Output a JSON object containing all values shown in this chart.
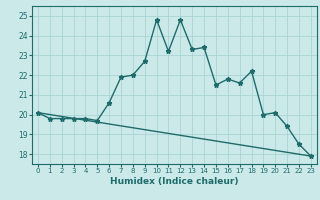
{
  "xlabel": "Humidex (Indice chaleur)",
  "xlim": [
    -0.5,
    23.5
  ],
  "ylim": [
    17.5,
    25.5
  ],
  "yticks": [
    18,
    19,
    20,
    21,
    22,
    23,
    24,
    25
  ],
  "xticks": [
    0,
    1,
    2,
    3,
    4,
    5,
    6,
    7,
    8,
    9,
    10,
    11,
    12,
    13,
    14,
    15,
    16,
    17,
    18,
    19,
    20,
    21,
    22,
    23
  ],
  "background_color": "#cce9e9",
  "line_color": "#1e6b6b",
  "grid_color": "#aad4d4",
  "line1_x": [
    0,
    1,
    2,
    3,
    4,
    5,
    6,
    7,
    8,
    9,
    10,
    11,
    12,
    13,
    14,
    15,
    16,
    17,
    18,
    19,
    20,
    21,
    22,
    23
  ],
  "line1_y": [
    20.1,
    19.8,
    19.8,
    19.8,
    19.8,
    19.7,
    20.6,
    21.9,
    22.0,
    22.7,
    24.8,
    23.2,
    24.8,
    23.3,
    23.4,
    21.5,
    21.8,
    21.6,
    22.2,
    20.0,
    20.1,
    19.4,
    18.5,
    17.9
  ],
  "line2_x": [
    0,
    23
  ],
  "line2_y": [
    20.1,
    17.9
  ],
  "marker": "*",
  "marker_size": 3.5,
  "linewidth": 1.0
}
